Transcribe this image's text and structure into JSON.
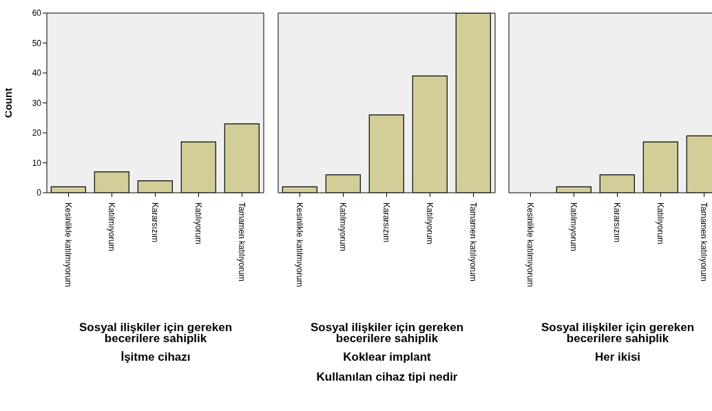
{
  "chart_data": [
    {
      "type": "bar",
      "title": "İşitme cihazı",
      "xlabel": "Sosyal ilişkiler için gereken becerilere sahiplik",
      "ylabel": "Count",
      "categories": [
        "Kesinlikle katılmıyorum",
        "Katılmıyorum",
        "Kararsızım",
        "Katılıyorum",
        "Tamamen katılıyorum"
      ],
      "values": [
        2,
        7,
        4,
        17,
        23
      ],
      "color": "#d3ce97",
      "ylim": [
        0,
        60
      ],
      "yticks": [
        0,
        10,
        20,
        30,
        40,
        50,
        60
      ],
      "legend": false,
      "grid": false
    },
    {
      "type": "bar",
      "title": "Koklear implant",
      "xlabel": "Sosyal ilişkiler için gereken becerilere sahiplik",
      "categories": [
        "Kesinlikle katılmıyorum",
        "Katılmıyorum",
        "Kararsızım",
        "Katılıyorum",
        "Tamamen katılıyorum"
      ],
      "values": [
        2,
        6,
        26,
        39,
        60
      ],
      "color": "#d3ce97",
      "ylim": [
        0,
        60
      ],
      "yticks": [
        0,
        10,
        20,
        30,
        40,
        50,
        60
      ],
      "tick_labels": "x",
      "legend": false,
      "grid": false,
      "annotations": [
        "Kullanılan cihaz tipi nedir"
      ]
    },
    {
      "type": "bar",
      "title": "Her ikisi",
      "xlabel": "Sosyal ilişkiler için gereken becerilere sahiplik",
      "categories": [
        "Kesinlikle katılmıyorum",
        "Katılmıyorum",
        "Kararsızım",
        "Katılıyorum",
        "Tamamen katılıyorum"
      ],
      "values": [
        0,
        2,
        6,
        17,
        19
      ],
      "color": "#d3ce97",
      "ylim": [
        0,
        60
      ],
      "yticks": [
        0,
        10,
        20,
        30,
        40,
        50,
        60
      ],
      "tick_labels": "x",
      "legend": false,
      "grid": false
    }
  ]
}
